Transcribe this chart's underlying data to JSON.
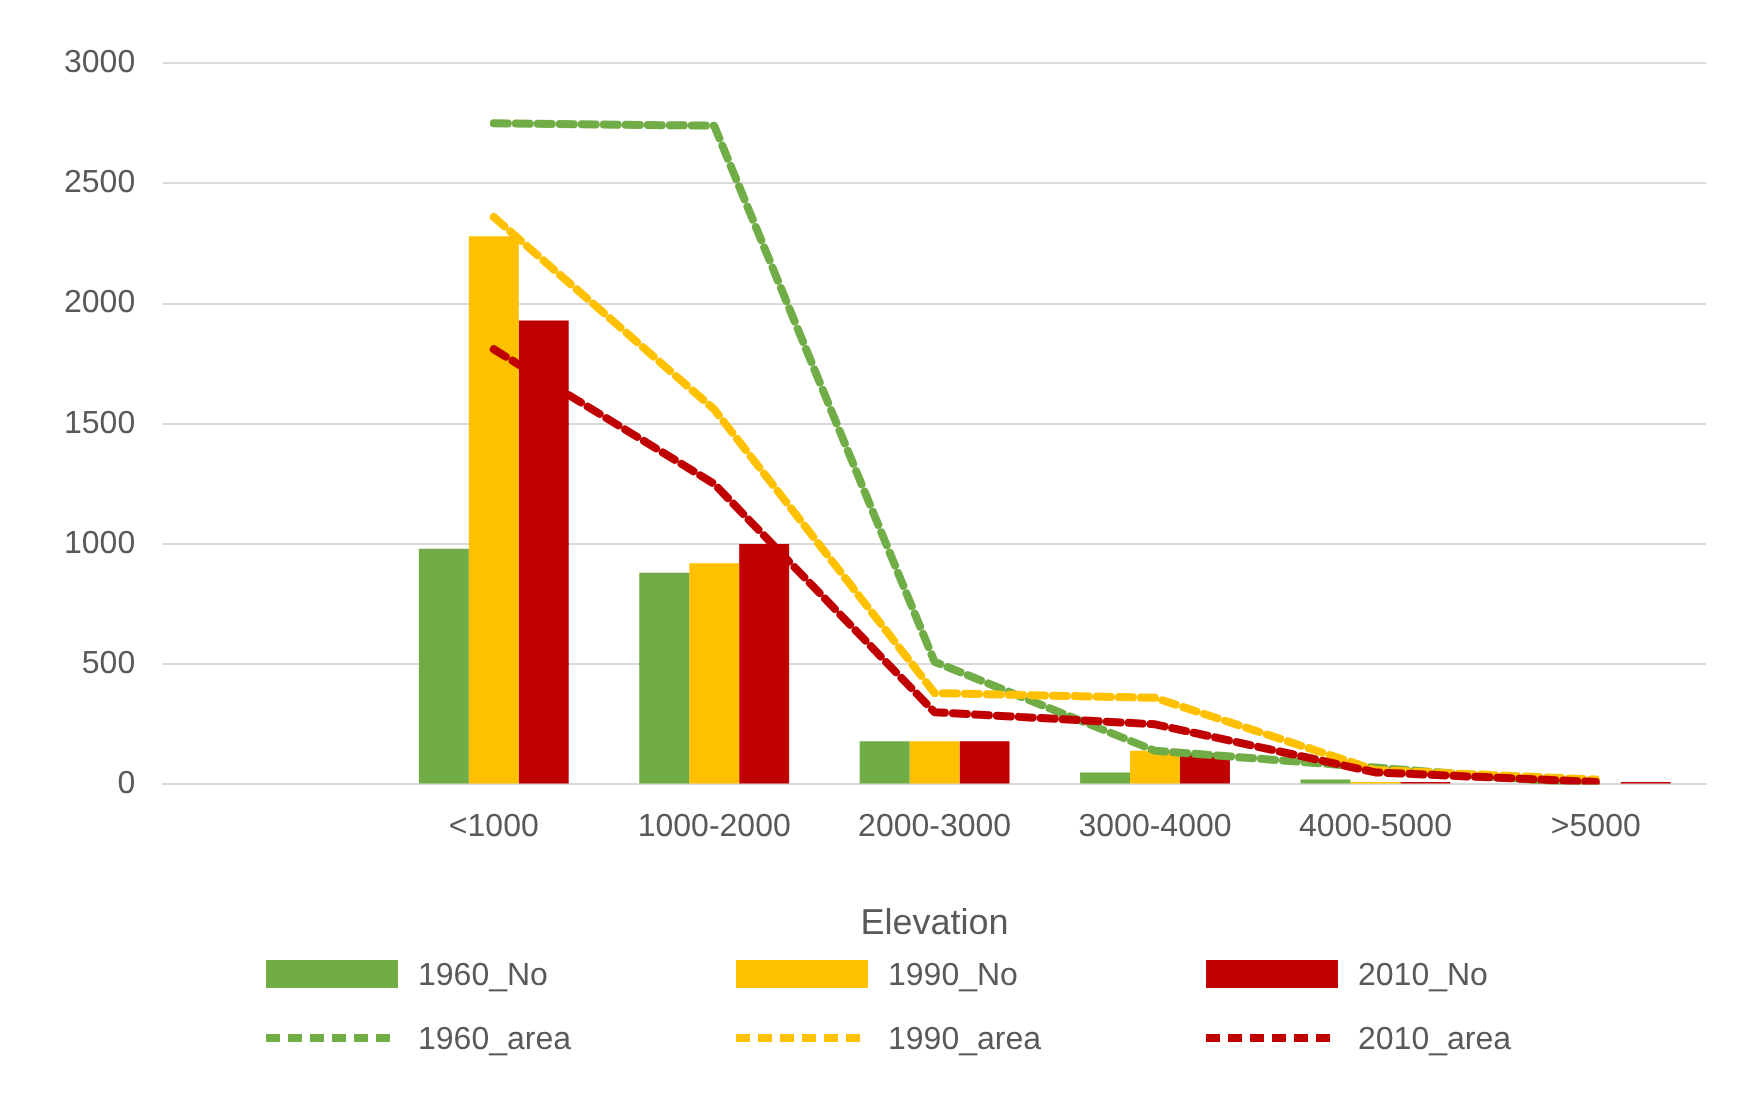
{
  "chart_data": {
    "type": "bar",
    "xlabel": "Elevation",
    "categories": [
      null,
      "<1000",
      "1000-2000",
      "2000-3000",
      "3000-4000",
      "4000-5000",
      ">5000"
    ],
    "series": [
      {
        "name": "1960_No",
        "color": "#70ad47",
        "values": [
          null,
          980,
          880,
          180,
          50,
          20,
          0
        ]
      },
      {
        "name": "1990_No",
        "color": "#ffc000",
        "values": [
          null,
          2280,
          920,
          180,
          140,
          10,
          0
        ]
      },
      {
        "name": "2010_No",
        "color": "#c00000",
        "values": [
          null,
          1930,
          1000,
          180,
          130,
          10,
          10
        ]
      },
      {
        "name": "1960_area",
        "type": "line",
        "line_style": "dashed",
        "color": "#70ad47",
        "values": [
          null,
          2750,
          2740,
          510,
          140,
          70,
          0
        ]
      },
      {
        "name": "1990_area",
        "type": "line",
        "line_style": "dashed",
        "color": "#ffc000",
        "values": [
          null,
          2360,
          1560,
          380,
          360,
          60,
          20
        ]
      },
      {
        "name": "2010_area",
        "type": "line",
        "line_style": "dashed",
        "color": "#c00000",
        "values": [
          null,
          1810,
          1250,
          300,
          250,
          50,
          10
        ]
      }
    ],
    "ylim": [
      0,
      3000
    ],
    "yticks": [
      0,
      500,
      1000,
      1500,
      2000,
      2500,
      3000
    ],
    "grid": "y",
    "legend": "bottom",
    "marker": "none"
  }
}
